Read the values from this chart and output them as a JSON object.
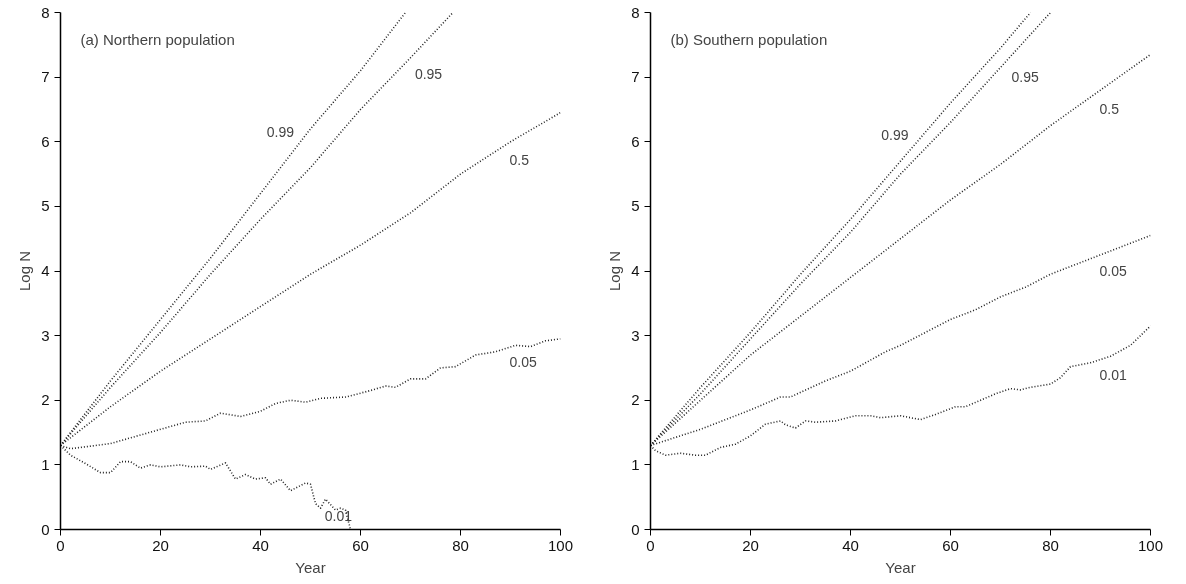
{
  "chart_data": [
    {
      "type": "line",
      "title": "(a) Northern population",
      "xlabel": "Year",
      "ylabel": "Log N",
      "xlim": [
        0,
        100
      ],
      "ylim": [
        0,
        8
      ],
      "xticks": [
        0,
        20,
        40,
        60,
        80,
        100
      ],
      "yticks": [
        0,
        1,
        2,
        3,
        4,
        5,
        6,
        7,
        8
      ],
      "grid": false,
      "line_style": "dotted",
      "marker": "none",
      "series": [
        {
          "name": "0.99",
          "color": "#222222",
          "x": [
            0,
            10,
            20,
            30,
            40,
            50,
            60,
            69
          ],
          "values": [
            1.3,
            2.3,
            3.25,
            4.2,
            5.2,
            6.2,
            7.1,
            8
          ]
        },
        {
          "name": "0.95",
          "color": "#222222",
          "x": [
            0,
            10,
            20,
            30,
            40,
            50,
            60,
            70,
            78.5
          ],
          "values": [
            1.3,
            2.2,
            3.05,
            3.95,
            4.8,
            5.6,
            6.5,
            7.3,
            8
          ]
        },
        {
          "name": "0.5",
          "color": "#222222",
          "x": [
            0,
            10,
            20,
            30,
            40,
            50,
            60,
            70,
            80,
            90,
            100
          ],
          "values": [
            1.3,
            1.9,
            2.45,
            2.95,
            3.45,
            3.95,
            4.4,
            4.9,
            5.5,
            6.0,
            6.45
          ]
        },
        {
          "name": "0.05",
          "color": "#222222",
          "x": [
            0,
            2,
            10,
            20,
            25,
            29,
            32,
            36,
            40,
            43,
            46,
            49,
            52,
            57,
            62,
            65,
            67,
            70,
            73,
            76,
            79,
            83,
            87,
            91,
            94,
            97,
            100
          ],
          "values": [
            1.3,
            1.25,
            1.33,
            1.55,
            1.66,
            1.68,
            1.8,
            1.75,
            1.83,
            1.95,
            2.0,
            1.97,
            2.03,
            2.05,
            2.15,
            2.22,
            2.2,
            2.33,
            2.33,
            2.5,
            2.52,
            2.7,
            2.75,
            2.85,
            2.83,
            2.92,
            2.95
          ]
        },
        {
          "name": "0.01",
          "color": "#222222",
          "x": [
            0,
            2,
            5,
            8,
            10,
            12,
            14,
            16,
            18,
            20,
            24,
            26,
            29,
            30,
            33,
            35,
            37,
            39,
            41,
            42,
            44,
            46,
            49,
            50,
            51,
            52,
            53,
            55,
            56,
            57,
            58
          ],
          "values": [
            1.3,
            1.15,
            1.02,
            0.88,
            0.88,
            1.05,
            1.05,
            0.95,
            1.0,
            0.97,
            1.0,
            0.97,
            0.98,
            0.93,
            1.03,
            0.78,
            0.85,
            0.78,
            0.8,
            0.7,
            0.78,
            0.6,
            0.72,
            0.7,
            0.4,
            0.33,
            0.47,
            0.3,
            0.33,
            0.3,
            0.0
          ]
        }
      ]
    },
    {
      "type": "line",
      "title": "(b) Southern population",
      "xlabel": "Year",
      "ylabel": "Log N",
      "xlim": [
        0,
        100
      ],
      "ylim": [
        0,
        8
      ],
      "xticks": [
        0,
        20,
        40,
        60,
        80,
        100
      ],
      "yticks": [
        0,
        1,
        2,
        3,
        4,
        5,
        6,
        7,
        8
      ],
      "grid": false,
      "line_style": "dotted",
      "marker": "none",
      "series": [
        {
          "name": "0.99",
          "color": "#222222",
          "x": [
            0,
            10,
            20,
            30,
            40,
            50,
            60,
            70,
            76
          ],
          "values": [
            1.3,
            2.2,
            3.05,
            3.95,
            4.8,
            5.7,
            6.6,
            7.45,
            8
          ]
        },
        {
          "name": "0.95",
          "color": "#222222",
          "x": [
            0,
            10,
            20,
            30,
            40,
            50,
            60,
            70,
            80
          ],
          "values": [
            1.3,
            2.1,
            2.95,
            3.8,
            4.6,
            5.5,
            6.3,
            7.15,
            8
          ]
        },
        {
          "name": "0.5",
          "color": "#222222",
          "x": [
            0,
            10,
            20,
            30,
            40,
            50,
            60,
            70,
            80,
            90,
            100
          ],
          "values": [
            1.3,
            2.0,
            2.7,
            3.3,
            3.9,
            4.5,
            5.1,
            5.65,
            6.25,
            6.8,
            7.35
          ]
        },
        {
          "name": "0.05",
          "color": "#222222",
          "x": [
            0,
            10,
            20,
            26,
            28,
            35,
            40,
            47,
            50,
            55,
            60,
            65,
            70,
            75,
            80,
            85,
            90,
            95,
            100
          ],
          "values": [
            1.3,
            1.55,
            1.85,
            2.05,
            2.05,
            2.3,
            2.45,
            2.75,
            2.85,
            3.05,
            3.25,
            3.4,
            3.6,
            3.75,
            3.95,
            4.1,
            4.25,
            4.4,
            4.55
          ]
        },
        {
          "name": "0.01",
          "color": "#222222",
          "x": [
            0,
            1,
            3,
            6,
            9,
            11,
            14,
            17,
            20,
            23,
            26,
            27,
            29,
            31,
            33,
            37,
            41,
            44,
            46,
            50,
            54,
            57,
            61,
            63,
            66,
            69,
            72,
            74,
            76,
            80,
            82,
            84,
            88,
            92,
            96,
            100
          ],
          "values": [
            1.3,
            1.22,
            1.15,
            1.18,
            1.15,
            1.15,
            1.27,
            1.32,
            1.45,
            1.63,
            1.68,
            1.62,
            1.57,
            1.68,
            1.66,
            1.68,
            1.76,
            1.76,
            1.73,
            1.76,
            1.7,
            1.78,
            1.9,
            1.9,
            2.0,
            2.1,
            2.18,
            2.16,
            2.2,
            2.25,
            2.35,
            2.52,
            2.58,
            2.68,
            2.85,
            3.15
          ]
        }
      ]
    }
  ]
}
